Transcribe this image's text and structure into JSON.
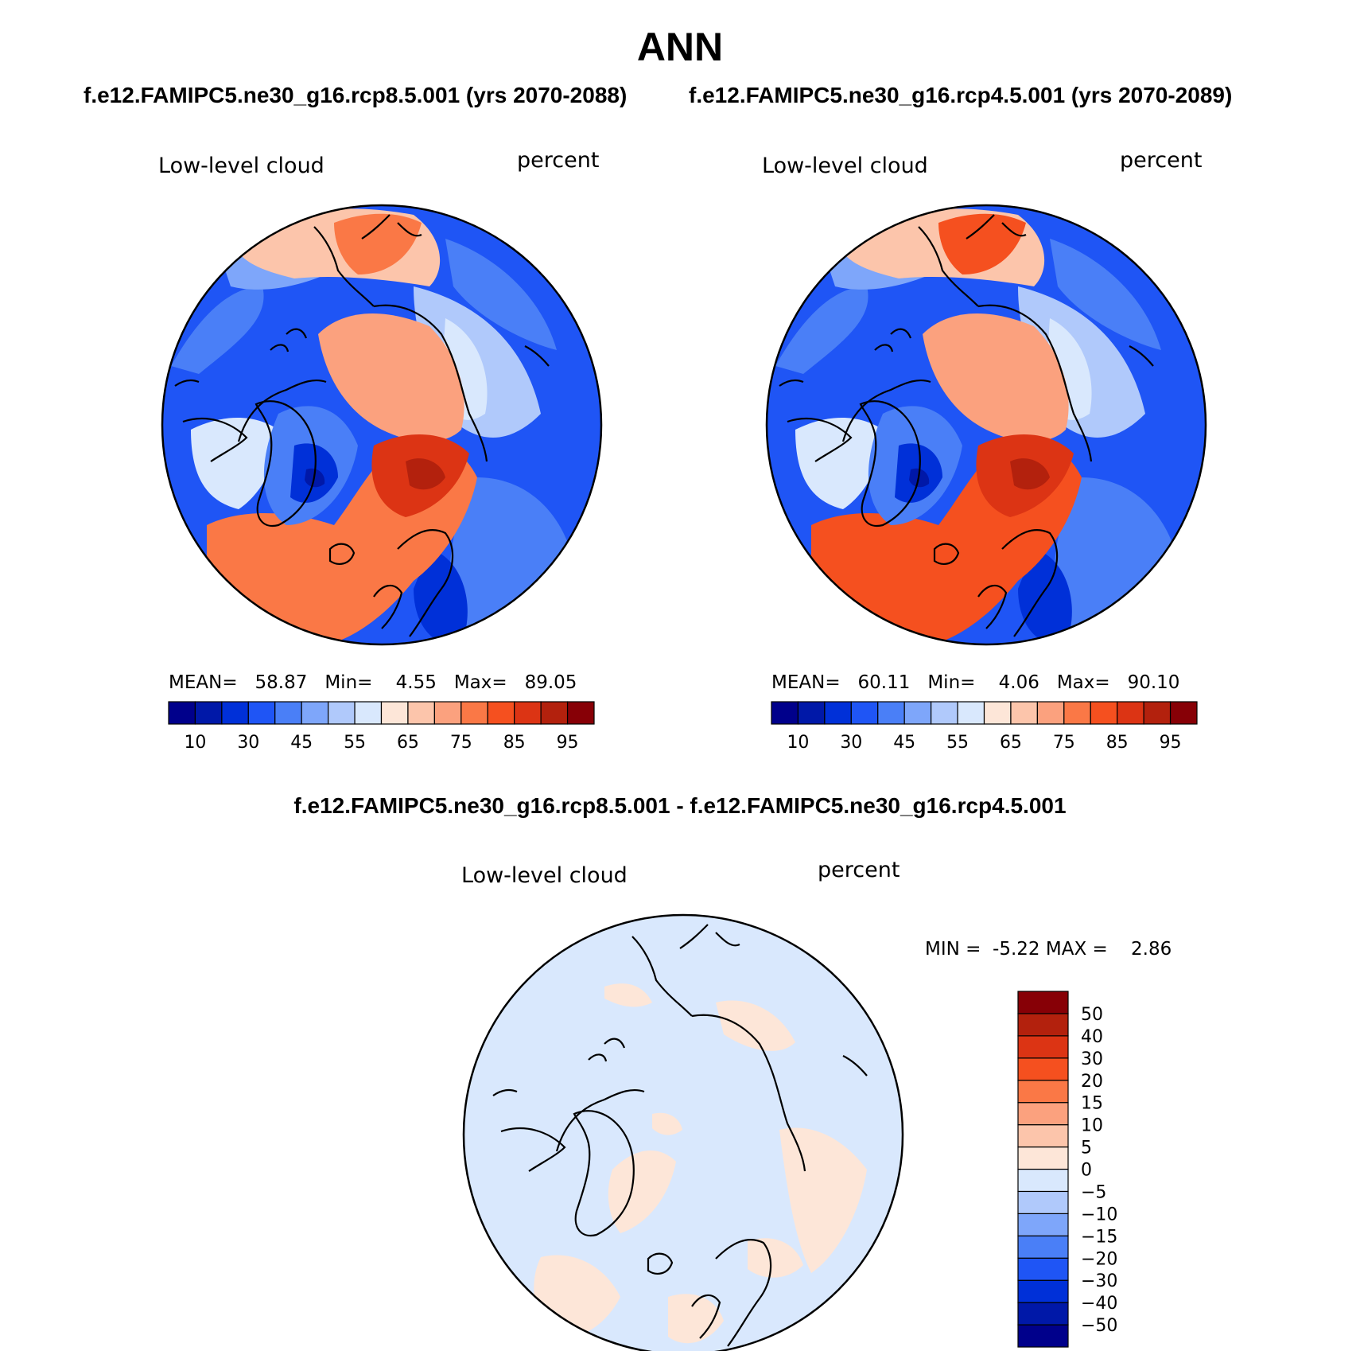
{
  "figure": {
    "title": "ANN",
    "subtitle_left": "f.e12.FAMIPC5.ne30_g16.rcp8.5.001 (yrs 2070-2088)",
    "subtitle_right": "f.e12.FAMIPC5.ne30_g16.rcp4.5.001 (yrs 2070-2089)",
    "diff_title": "f.e12.FAMIPC5.ne30_g16.rcp8.5.001 - f.e12.FAMIPC5.ne30_g16.rcp4.5.001"
  },
  "colors": {
    "abs": [
      "#00008b",
      "#0018a8",
      "#0030d8",
      "#1f55f5",
      "#4a7ff7",
      "#7ea6fa",
      "#b0c9fb",
      "#d9e8fd",
      "#fde6d8",
      "#fcc5ab",
      "#fba17e",
      "#fa7846",
      "#f5501f",
      "#dc3414",
      "#b3210d",
      "#870006"
    ],
    "diff": [
      "#00008b",
      "#0018a8",
      "#0030d8",
      "#1f55f5",
      "#4a7ff7",
      "#7ea6fa",
      "#b0c9fb",
      "#d9e8fd",
      "#fde6d8",
      "#fcc5ab",
      "#fba17e",
      "#fa7846",
      "#f5501f",
      "#dc3414",
      "#b3210d",
      "#870006"
    ],
    "map_ocean_low": "#1f55f5",
    "map_high": "#fa7846"
  },
  "chart_data": [
    {
      "type": "heatmap",
      "projection": "north polar stereographic",
      "case": "f.e12.FAMIPC5.ne30_g16.rcp8.5.001 (yrs 2070-2088)",
      "variable": "Low-level cloud",
      "units": "percent",
      "stats": {
        "mean_label": "MEAN=",
        "mean": "58.87",
        "min_label": "Min=",
        "min": "4.55",
        "max_label": "Max=",
        "max": "89.05"
      },
      "levels": [
        5,
        10,
        15,
        20,
        25,
        30,
        35,
        40,
        45,
        50,
        55,
        60,
        65,
        70,
        75,
        80,
        85,
        90,
        95
      ],
      "colorbar_tick_labels": [
        "10",
        "30",
        "45",
        "55",
        "65",
        "75",
        "85",
        "95"
      ]
    },
    {
      "type": "heatmap",
      "projection": "north polar stereographic",
      "case": "f.e12.FAMIPC5.ne30_g16.rcp4.5.001 (yrs 2070-2089)",
      "variable": "Low-level cloud",
      "units": "percent",
      "stats": {
        "mean_label": "MEAN=",
        "mean": "60.11",
        "min_label": "Min=",
        "min": "4.06",
        "max_label": "Max=",
        "max": "90.10"
      },
      "levels": [
        5,
        10,
        15,
        20,
        25,
        30,
        35,
        40,
        45,
        50,
        55,
        60,
        65,
        70,
        75,
        80,
        85,
        90,
        95
      ],
      "colorbar_tick_labels": [
        "10",
        "30",
        "45",
        "55",
        "65",
        "75",
        "85",
        "95"
      ]
    },
    {
      "type": "heatmap",
      "projection": "north polar stereographic",
      "case": "f.e12.FAMIPC5.ne30_g16.rcp8.5.001 - f.e12.FAMIPC5.ne30_g16.rcp4.5.001",
      "variable": "Low-level cloud",
      "units": "percent",
      "stats": {
        "min_label": "MIN =",
        "min": "-5.22",
        "max_label": "MAX =",
        "max": "2.86"
      },
      "levels": [
        -50,
        -40,
        -30,
        -20,
        -15,
        -10,
        -5,
        0,
        5,
        10,
        15,
        20,
        30,
        40,
        50
      ],
      "colorbar_tick_labels": [
        "50",
        "40",
        "30",
        "20",
        "15",
        "10",
        "5",
        "0",
        "−5",
        "−10",
        "−15",
        "−20",
        "−30",
        "−40",
        "−50"
      ]
    }
  ]
}
